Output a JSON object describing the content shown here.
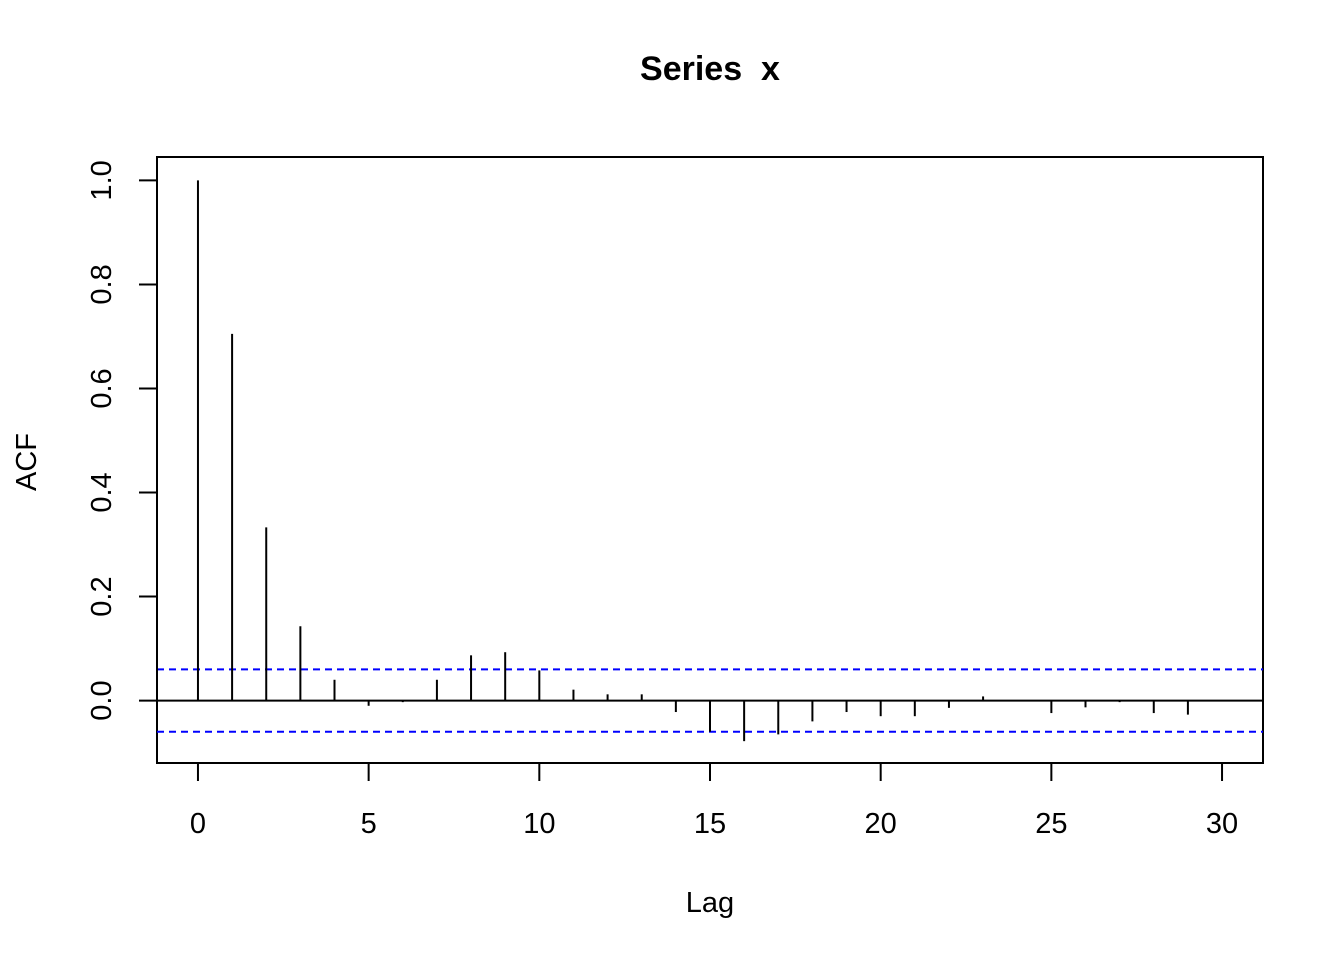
{
  "chart_data": {
    "type": "bar",
    "title": "Series  x",
    "xlabel": "Lag",
    "ylabel": "ACF",
    "xlim": [
      -1.2,
      31.2
    ],
    "ylim": [
      -0.12,
      1.045
    ],
    "x_ticks": [
      0,
      5,
      10,
      15,
      20,
      25,
      30
    ],
    "x_tick_labels": [
      "0",
      "5",
      "10",
      "15",
      "20",
      "25",
      "30"
    ],
    "y_ticks": [
      0.0,
      0.2,
      0.4,
      0.6,
      0.8,
      1.0
    ],
    "y_tick_labels": [
      "0.0",
      "0.2",
      "0.4",
      "0.6",
      "0.8",
      "1.0"
    ],
    "confidence_bound": 0.06,
    "confidence_color": "#0000FF",
    "zero_line": true,
    "grid": false,
    "lags": [
      0,
      1,
      2,
      3,
      4,
      5,
      6,
      7,
      8,
      9,
      10,
      11,
      12,
      13,
      14,
      15,
      16,
      17,
      18,
      19,
      20,
      21,
      22,
      23,
      24,
      25,
      26,
      27,
      28,
      29
    ],
    "values": [
      1.0,
      0.705,
      0.333,
      0.143,
      0.04,
      -0.01,
      -0.003,
      0.04,
      0.087,
      0.093,
      0.058,
      0.021,
      0.012,
      0.012,
      -0.022,
      -0.06,
      -0.078,
      -0.065,
      -0.04,
      -0.022,
      -0.03,
      -0.03,
      -0.014,
      0.008,
      -0.001,
      -0.024,
      -0.013,
      -0.003,
      -0.024,
      -0.027
    ]
  }
}
